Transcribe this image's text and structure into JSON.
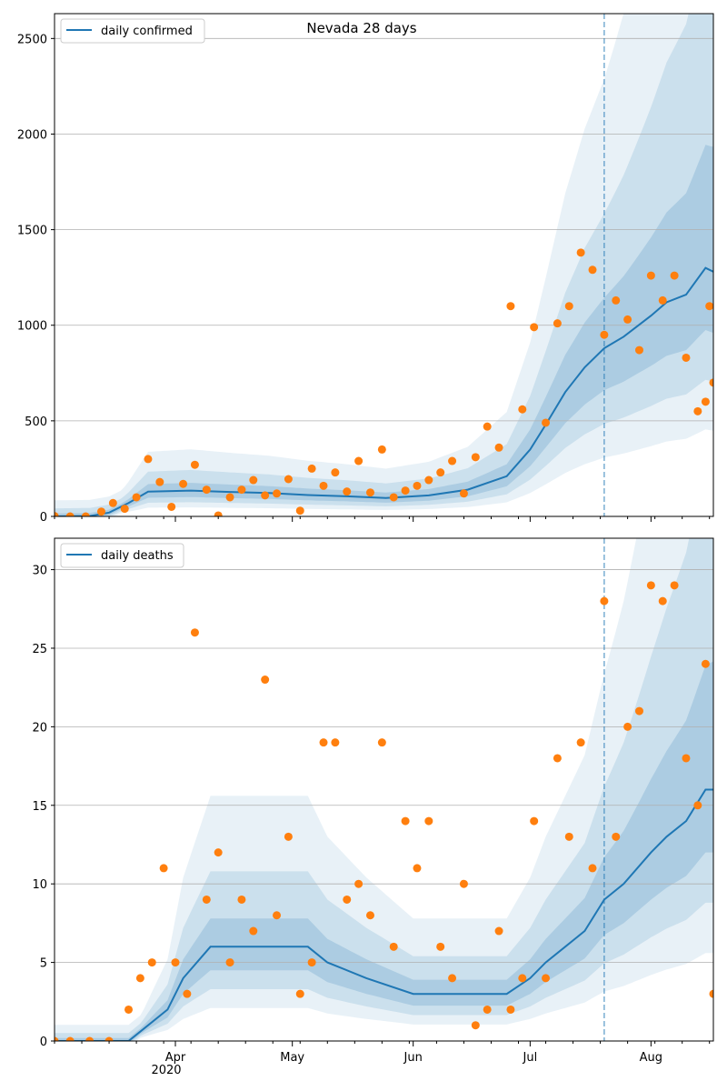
{
  "chart_data": [
    {
      "type": "line",
      "title": "Nevada 28 days",
      "legend": "top-left",
      "xlabel": "",
      "ylabel": "",
      "xlim": [
        "2020-03-01",
        "2020-08-17"
      ],
      "ylim": [
        0,
        2630
      ],
      "yticks": [
        0,
        500,
        1000,
        1500,
        2000,
        2500
      ],
      "grid": "y",
      "forecast_start": "2020-07-20",
      "series": [
        {
          "name": "daily confirmed",
          "color": "#1f77b4",
          "points": [
            [
              "2020-03-01",
              0
            ],
            [
              "2020-03-10",
              2
            ],
            [
              "2020-03-15",
              20
            ],
            [
              "2020-03-20",
              70
            ],
            [
              "2020-03-25",
              130
            ],
            [
              "2020-04-05",
              135
            ],
            [
              "2020-04-15",
              128
            ],
            [
              "2020-04-25",
              122
            ],
            [
              "2020-05-05",
              112
            ],
            [
              "2020-05-15",
              105
            ],
            [
              "2020-05-25",
              96
            ],
            [
              "2020-06-05",
              110
            ],
            [
              "2020-06-15",
              140
            ],
            [
              "2020-06-25",
              210
            ],
            [
              "2020-07-01",
              350
            ],
            [
              "2020-07-05",
              480
            ],
            [
              "2020-07-10",
              650
            ],
            [
              "2020-07-15",
              780
            ],
            [
              "2020-07-20",
              880
            ],
            [
              "2020-07-25",
              940
            ],
            [
              "2020-08-01",
              1050
            ],
            [
              "2020-08-05",
              1120
            ],
            [
              "2020-08-10",
              1160
            ],
            [
              "2020-08-15",
              1300
            ],
            [
              "2020-08-17",
              1280
            ]
          ]
        }
      ],
      "observed": {
        "color": "#ff7f0e",
        "points": [
          [
            "2020-03-01",
            2
          ],
          [
            "2020-03-05",
            0
          ],
          [
            "2020-03-09",
            0
          ],
          [
            "2020-03-13",
            25
          ],
          [
            "2020-03-16",
            70
          ],
          [
            "2020-03-19",
            40
          ],
          [
            "2020-03-22",
            100
          ],
          [
            "2020-03-25",
            300
          ],
          [
            "2020-03-28",
            180
          ],
          [
            "2020-03-31",
            50
          ],
          [
            "2020-04-03",
            170
          ],
          [
            "2020-04-06",
            270
          ],
          [
            "2020-04-09",
            140
          ],
          [
            "2020-04-12",
            5
          ],
          [
            "2020-04-15",
            100
          ],
          [
            "2020-04-18",
            140
          ],
          [
            "2020-04-21",
            190
          ],
          [
            "2020-04-24",
            110
          ],
          [
            "2020-04-27",
            120
          ],
          [
            "2020-04-30",
            195
          ],
          [
            "2020-05-03",
            30
          ],
          [
            "2020-05-06",
            250
          ],
          [
            "2020-05-09",
            160
          ],
          [
            "2020-05-12",
            230
          ],
          [
            "2020-05-15",
            130
          ],
          [
            "2020-05-18",
            290
          ],
          [
            "2020-05-21",
            125
          ],
          [
            "2020-05-24",
            350
          ],
          [
            "2020-05-27",
            100
          ],
          [
            "2020-05-30",
            135
          ],
          [
            "2020-06-02",
            160
          ],
          [
            "2020-06-05",
            190
          ],
          [
            "2020-06-08",
            230
          ],
          [
            "2020-06-11",
            290
          ],
          [
            "2020-06-14",
            120
          ],
          [
            "2020-06-17",
            310
          ],
          [
            "2020-06-20",
            470
          ],
          [
            "2020-06-23",
            360
          ],
          [
            "2020-06-26",
            1100
          ],
          [
            "2020-06-29",
            560
          ],
          [
            "2020-07-02",
            990
          ],
          [
            "2020-07-05",
            490
          ],
          [
            "2020-07-08",
            1010
          ],
          [
            "2020-07-11",
            1100
          ],
          [
            "2020-07-14",
            1380
          ],
          [
            "2020-07-17",
            1290
          ],
          [
            "2020-07-20",
            950
          ],
          [
            "2020-07-23",
            1130
          ],
          [
            "2020-07-26",
            1030
          ],
          [
            "2020-07-29",
            870
          ],
          [
            "2020-08-01",
            1260
          ],
          [
            "2020-08-04",
            1130
          ],
          [
            "2020-08-07",
            1260
          ],
          [
            "2020-08-10",
            830
          ],
          [
            "2020-08-13",
            550
          ],
          [
            "2020-08-15",
            600
          ],
          [
            "2020-08-16",
            1100
          ],
          [
            "2020-08-17",
            700
          ]
        ]
      }
    },
    {
      "type": "line",
      "title": "",
      "legend": "top-left",
      "xlabel": "",
      "ylabel": "",
      "xlim": [
        "2020-03-01",
        "2020-08-17"
      ],
      "ylim": [
        0,
        32
      ],
      "yticks": [
        0,
        5,
        10,
        15,
        20,
        25,
        30
      ],
      "xticks": [
        "Apr",
        "May",
        "Jun",
        "Jul",
        "Aug"
      ],
      "xtick_dates": [
        "2020-04-01",
        "2020-05-01",
        "2020-06-01",
        "2020-07-01",
        "2020-08-01"
      ],
      "year_label": "2020",
      "grid": "y",
      "forecast_start": "2020-07-20",
      "series": [
        {
          "name": "daily deaths",
          "color": "#1f77b4",
          "points": [
            [
              "2020-03-01",
              0
            ],
            [
              "2020-03-20",
              0
            ],
            [
              "2020-03-25",
              1
            ],
            [
              "2020-03-30",
              2
            ],
            [
              "2020-04-03",
              4
            ],
            [
              "2020-04-10",
              6
            ],
            [
              "2020-04-15",
              6
            ],
            [
              "2020-04-20",
              6
            ],
            [
              "2020-04-25",
              6
            ],
            [
              "2020-05-05",
              6
            ],
            [
              "2020-05-10",
              5
            ],
            [
              "2020-05-20",
              4
            ],
            [
              "2020-06-01",
              3
            ],
            [
              "2020-06-15",
              3
            ],
            [
              "2020-06-25",
              3
            ],
            [
              "2020-07-01",
              4
            ],
            [
              "2020-07-05",
              5
            ],
            [
              "2020-07-10",
              6
            ],
            [
              "2020-07-15",
              7
            ],
            [
              "2020-07-20",
              9
            ],
            [
              "2020-07-25",
              10
            ],
            [
              "2020-08-01",
              12
            ],
            [
              "2020-08-05",
              13
            ],
            [
              "2020-08-10",
              14
            ],
            [
              "2020-08-15",
              16
            ],
            [
              "2020-08-17",
              16
            ]
          ]
        }
      ],
      "observed": {
        "color": "#ff7f0e",
        "points": [
          [
            "2020-03-01",
            0
          ],
          [
            "2020-03-05",
            0
          ],
          [
            "2020-03-10",
            0
          ],
          [
            "2020-03-15",
            0
          ],
          [
            "2020-03-20",
            2
          ],
          [
            "2020-03-23",
            4
          ],
          [
            "2020-03-26",
            5
          ],
          [
            "2020-03-29",
            11
          ],
          [
            "2020-04-01",
            5
          ],
          [
            "2020-04-04",
            3
          ],
          [
            "2020-04-06",
            26
          ],
          [
            "2020-04-09",
            9
          ],
          [
            "2020-04-12",
            12
          ],
          [
            "2020-04-15",
            5
          ],
          [
            "2020-04-18",
            9
          ],
          [
            "2020-04-21",
            7
          ],
          [
            "2020-04-24",
            23
          ],
          [
            "2020-04-27",
            8
          ],
          [
            "2020-04-30",
            13
          ],
          [
            "2020-05-03",
            3
          ],
          [
            "2020-05-06",
            5
          ],
          [
            "2020-05-09",
            19
          ],
          [
            "2020-05-12",
            19
          ],
          [
            "2020-05-15",
            9
          ],
          [
            "2020-05-18",
            10
          ],
          [
            "2020-05-21",
            8
          ],
          [
            "2020-05-24",
            19
          ],
          [
            "2020-05-27",
            6
          ],
          [
            "2020-05-30",
            14
          ],
          [
            "2020-06-02",
            11
          ],
          [
            "2020-06-05",
            14
          ],
          [
            "2020-06-08",
            6
          ],
          [
            "2020-06-11",
            4
          ],
          [
            "2020-06-14",
            10
          ],
          [
            "2020-06-17",
            1
          ],
          [
            "2020-06-20",
            2
          ],
          [
            "2020-06-23",
            7
          ],
          [
            "2020-06-26",
            2
          ],
          [
            "2020-06-29",
            4
          ],
          [
            "2020-07-02",
            14
          ],
          [
            "2020-07-05",
            4
          ],
          [
            "2020-07-08",
            18
          ],
          [
            "2020-07-11",
            13
          ],
          [
            "2020-07-14",
            19
          ],
          [
            "2020-07-17",
            11
          ],
          [
            "2020-07-20",
            28
          ],
          [
            "2020-07-23",
            13
          ],
          [
            "2020-07-26",
            20
          ],
          [
            "2020-07-29",
            21
          ],
          [
            "2020-08-01",
            29
          ],
          [
            "2020-08-04",
            28
          ],
          [
            "2020-08-07",
            29
          ],
          [
            "2020-08-10",
            18
          ],
          [
            "2020-08-13",
            15
          ],
          [
            "2020-08-15",
            24
          ],
          [
            "2020-08-17",
            3
          ]
        ]
      }
    }
  ]
}
